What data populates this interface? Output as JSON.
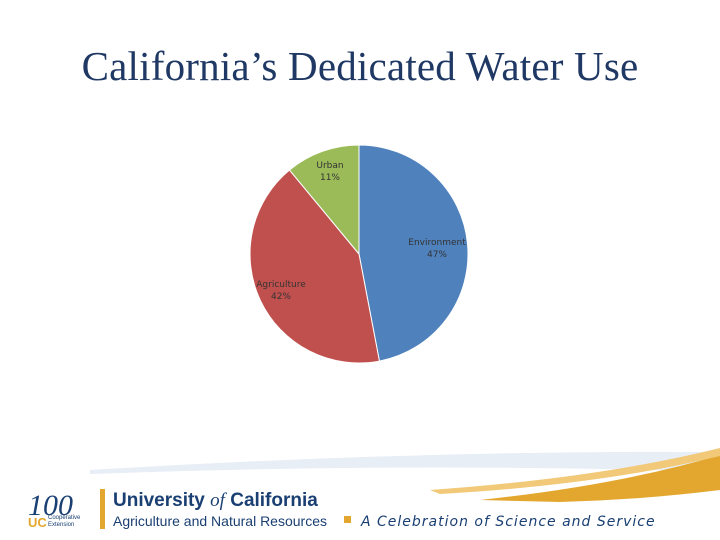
{
  "title": "California’s Dedicated Water Use",
  "chart_data": {
    "type": "pie",
    "title": "",
    "slices": [
      {
        "label": "Environment",
        "value": 47,
        "pct_label": "47%",
        "color": "#4f81bd"
      },
      {
        "label": "Agriculture",
        "value": 42,
        "pct_label": "42%",
        "color": "#c0504d"
      },
      {
        "label": "Urban",
        "value": 11,
        "pct_label": "11%",
        "color": "#9bbb59"
      }
    ]
  },
  "footer": {
    "logo_number": "100",
    "uc_mark": "UC",
    "coop_line1": "Cooperative",
    "coop_line2": "Extension",
    "org_name_1": "University ",
    "org_name_of": "of",
    "org_name_2": " California",
    "org_sub": "Agriculture and Natural Resources",
    "tagline": "A Celebration of Science and Service",
    "colors": {
      "navy": "#1a3f72",
      "gold": "#e3a72f"
    }
  }
}
